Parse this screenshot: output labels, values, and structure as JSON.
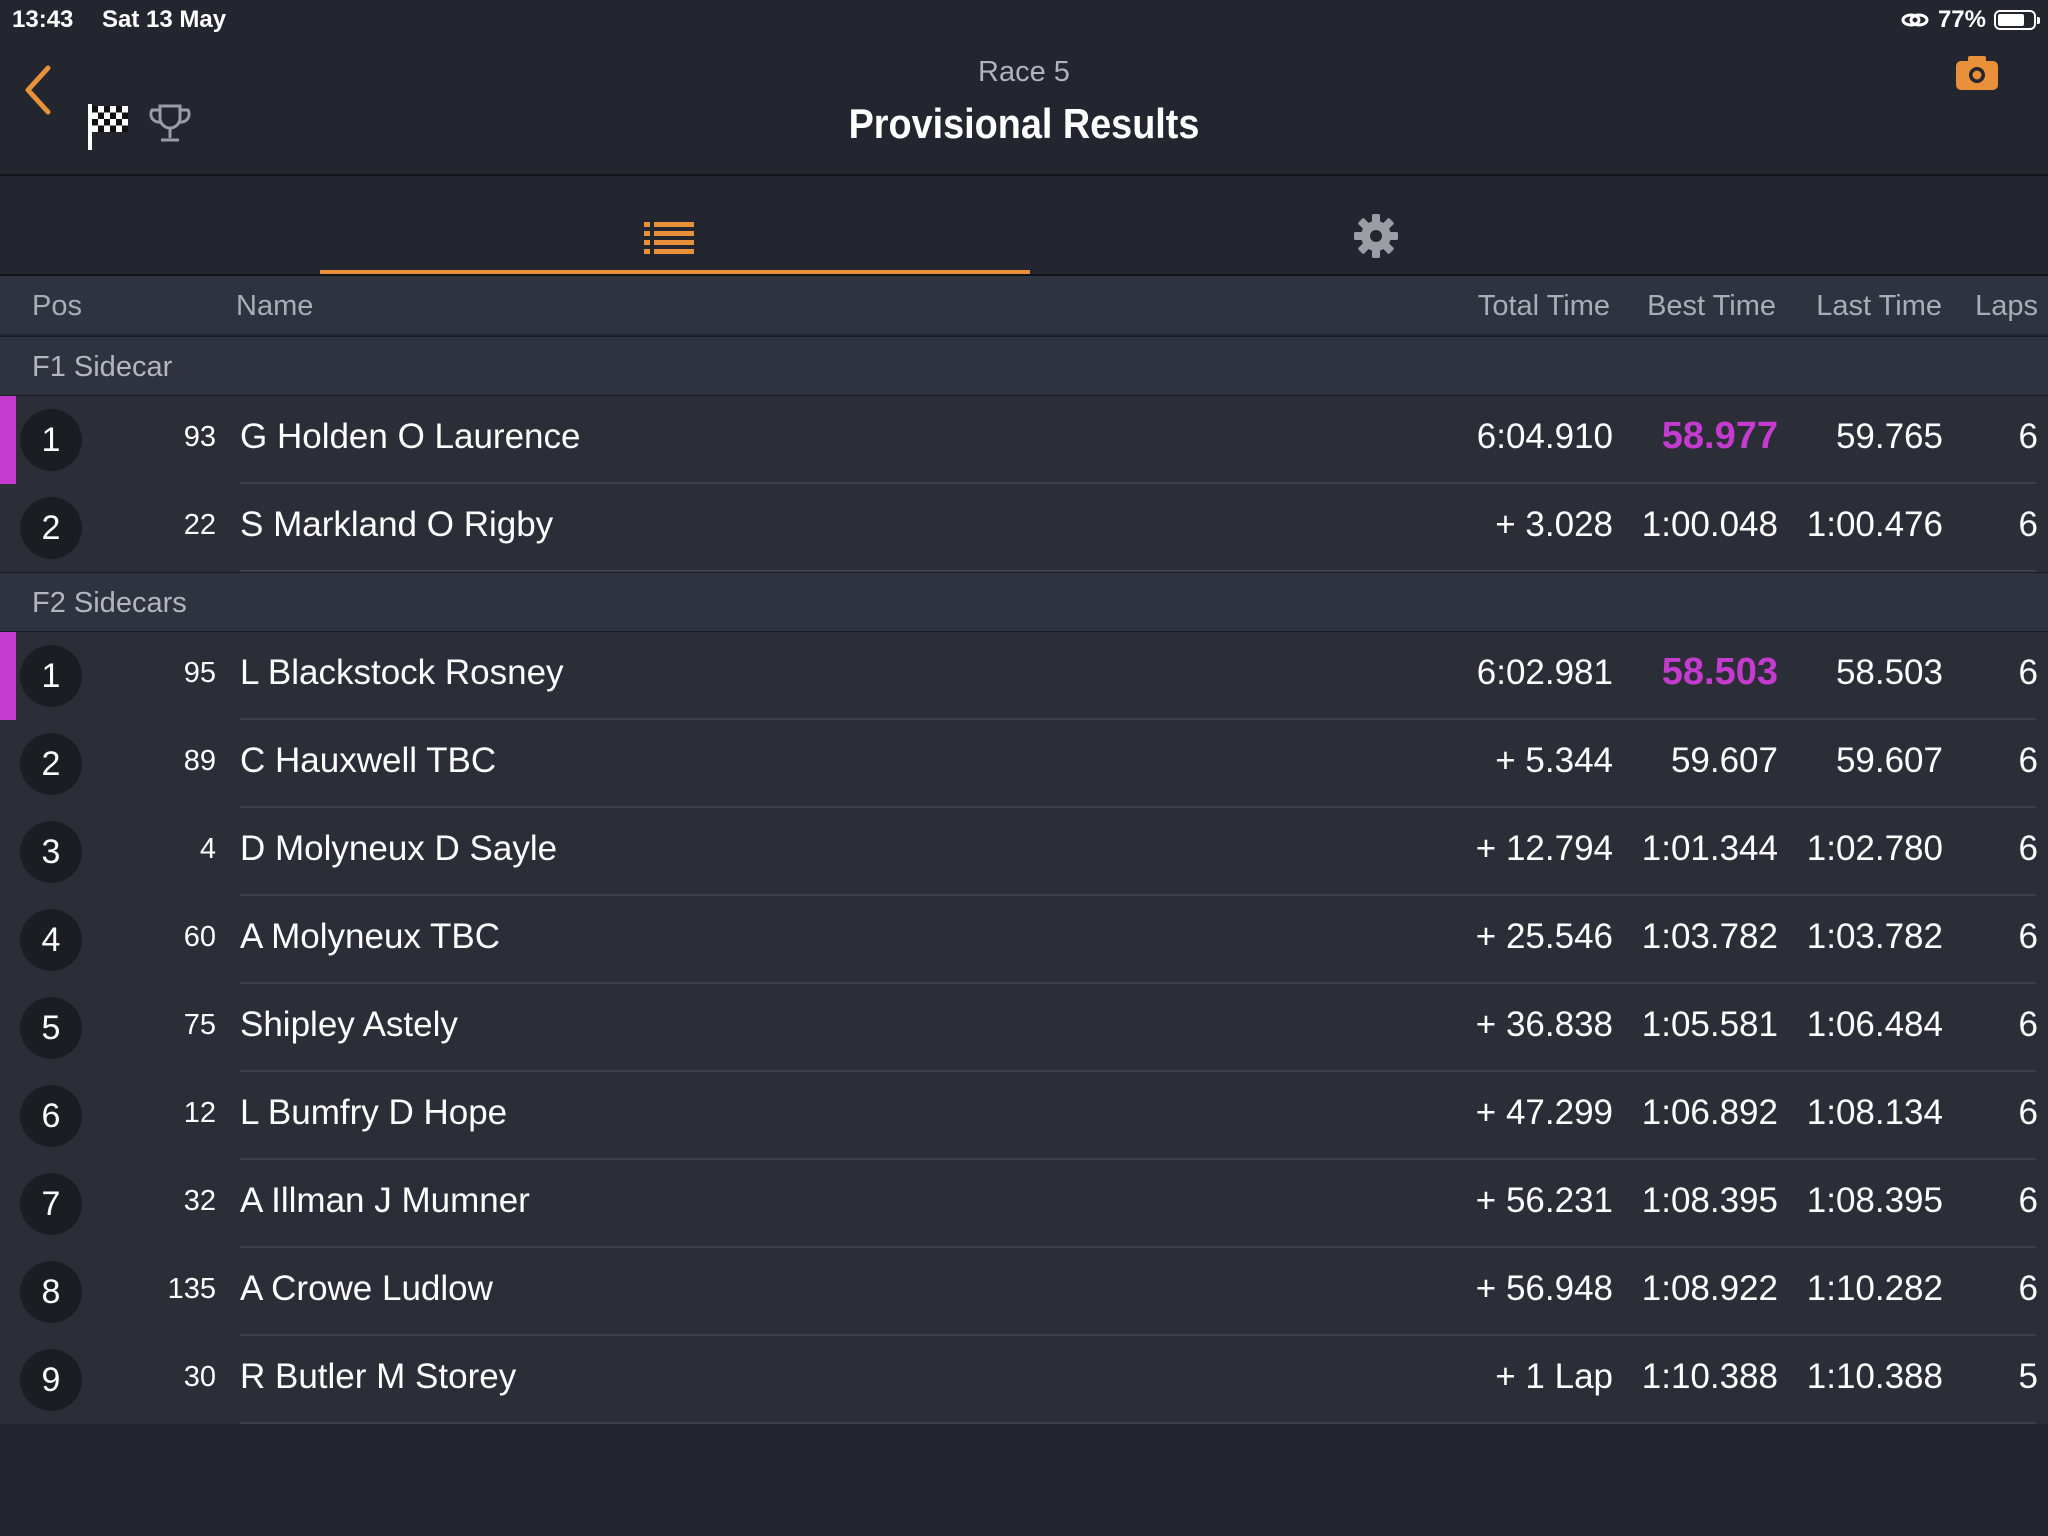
{
  "status": {
    "time": "13:43",
    "date": "Sat 13 May",
    "battery": "77%",
    "battery_level": 0.77
  },
  "nav": {
    "subtitle": "Race 5",
    "title": "Provisional Results",
    "icons": [
      "back-chevron-icon",
      "checkered-flag-icon",
      "trophy-icon",
      "camera-icon"
    ]
  },
  "tabs": [
    {
      "icon": "list-icon",
      "active": true
    },
    {
      "icon": "gear-icon",
      "active": false
    }
  ],
  "colors": {
    "accent": "#e8913a",
    "best_lap": "#c53bd0",
    "background": "#23262e"
  },
  "columns": {
    "pos": "Pos",
    "name": "Name",
    "total": "Total Time",
    "best": "Best Time",
    "last": "Last Time",
    "laps": "Laps"
  },
  "groups": [
    {
      "name": "F1 Sidecar",
      "rows": [
        {
          "pos": "1",
          "num": "93",
          "name": "G Holden O Laurence",
          "total": "6:04.910",
          "best": "58.977",
          "last": "59.765",
          "laps": "6",
          "fastest": true
        },
        {
          "pos": "2",
          "num": "22",
          "name": "S Markland O Rigby",
          "total": "+ 3.028",
          "best": "1:00.048",
          "last": "1:00.476",
          "laps": "6",
          "fastest": false
        }
      ]
    },
    {
      "name": "F2 Sidecars",
      "rows": [
        {
          "pos": "1",
          "num": "95",
          "name": "L Blackstock Rosney",
          "total": "6:02.981",
          "best": "58.503",
          "last": "58.503",
          "laps": "6",
          "fastest": true
        },
        {
          "pos": "2",
          "num": "89",
          "name": "C Hauxwell TBC",
          "total": "+ 5.344",
          "best": "59.607",
          "last": "59.607",
          "laps": "6",
          "fastest": false
        },
        {
          "pos": "3",
          "num": "4",
          "name": "D Molyneux D Sayle",
          "total": "+ 12.794",
          "best": "1:01.344",
          "last": "1:02.780",
          "laps": "6",
          "fastest": false
        },
        {
          "pos": "4",
          "num": "60",
          "name": "A Molyneux TBC",
          "total": "+ 25.546",
          "best": "1:03.782",
          "last": "1:03.782",
          "laps": "6",
          "fastest": false
        },
        {
          "pos": "5",
          "num": "75",
          "name": "Shipley Astely",
          "total": "+ 36.838",
          "best": "1:05.581",
          "last": "1:06.484",
          "laps": "6",
          "fastest": false
        },
        {
          "pos": "6",
          "num": "12",
          "name": "L Bumfry D Hope",
          "total": "+ 47.299",
          "best": "1:06.892",
          "last": "1:08.134",
          "laps": "6",
          "fastest": false
        },
        {
          "pos": "7",
          "num": "32",
          "name": "A Illman J Mumner",
          "total": "+ 56.231",
          "best": "1:08.395",
          "last": "1:08.395",
          "laps": "6",
          "fastest": false
        },
        {
          "pos": "8",
          "num": "135",
          "name": "A Crowe Ludlow",
          "total": "+ 56.948",
          "best": "1:08.922",
          "last": "1:10.282",
          "laps": "6",
          "fastest": false
        },
        {
          "pos": "9",
          "num": "30",
          "name": "R Butler M Storey",
          "total": "+ 1 Lap",
          "best": "1:10.388",
          "last": "1:10.388",
          "laps": "5",
          "fastest": false
        }
      ]
    }
  ]
}
